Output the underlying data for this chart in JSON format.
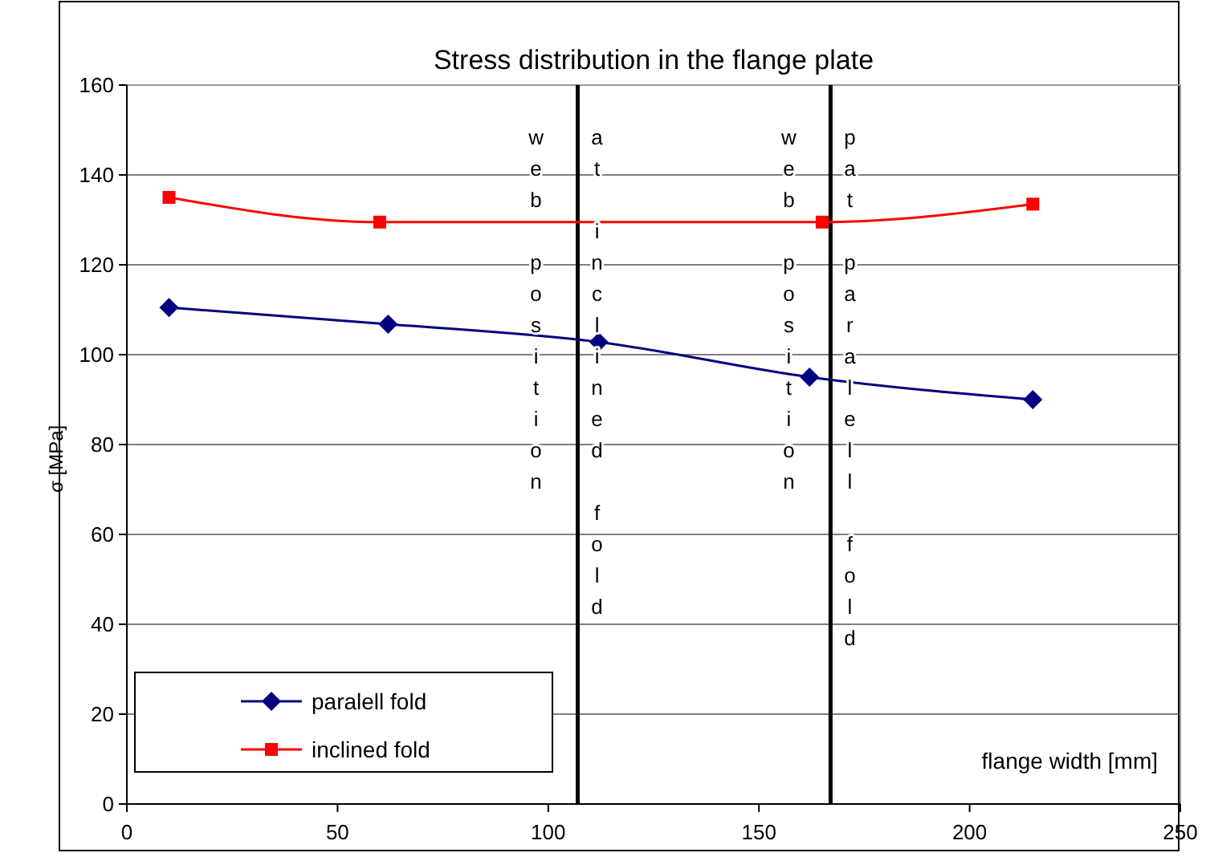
{
  "chart_data": {
    "type": "line",
    "title": "Stress distribution in the flange plate",
    "xlabel": "flange width [mm]",
    "ylabel": "σ [MPa]",
    "xlim": [
      0,
      250
    ],
    "xticks": [
      0,
      50,
      100,
      150,
      200,
      250
    ],
    "ylim": [
      0,
      160
    ],
    "yticks": [
      0,
      20,
      40,
      60,
      80,
      100,
      120,
      140,
      160
    ],
    "grid": "y",
    "legend": "bottom left",
    "series": [
      {
        "name": "paralell fold",
        "color": "#000080",
        "marker": "diamond",
        "x": [
          10,
          62,
          112,
          162,
          215
        ],
        "values": [
          110.5,
          106.8,
          102.8,
          95,
          90
        ]
      },
      {
        "name": "inclined fold",
        "color": "#ff0000",
        "marker": "square",
        "x": [
          10,
          60,
          165,
          215
        ],
        "values": [
          135,
          129.5,
          129.5,
          133.5
        ]
      }
    ],
    "ref_lines": [
      {
        "axis": "x",
        "value": 107,
        "color": "#000000",
        "label": "web position"
      },
      {
        "axis": "x",
        "value": 167,
        "color": "#000000",
        "label": "web position"
      }
    ],
    "annotations": [
      "at inclined fold",
      "pat paralell fold"
    ]
  }
}
